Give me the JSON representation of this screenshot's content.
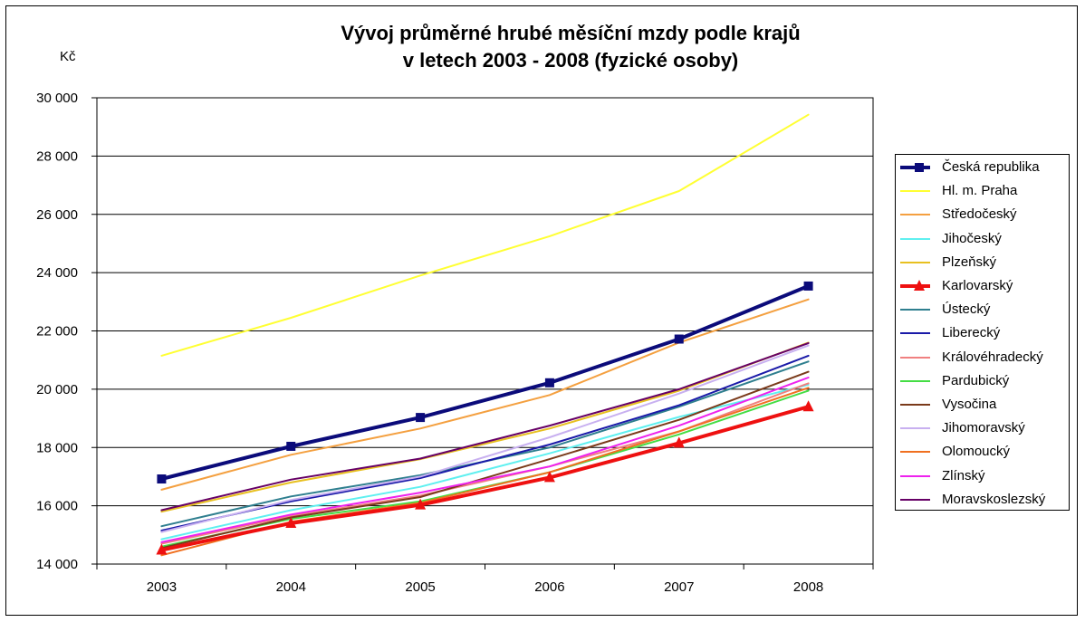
{
  "unit_label": "Kč",
  "title_line1": "Vývoj průměrné hrubé měsíční mzdy podle krajů",
  "title_line2": "v letech 2003 - 2008 (fyzické osoby)",
  "chart_data": {
    "type": "line",
    "title": "Vývoj průměrné hrubé měsíční mzdy podle krajů v letech 2003 - 2008 (fyzické osoby)",
    "xlabel": "",
    "ylabel": "Kč",
    "x": [
      "2003",
      "2004",
      "2005",
      "2006",
      "2007",
      "2008"
    ],
    "ylim": [
      14000,
      30000
    ],
    "yticks": [
      14000,
      16000,
      18000,
      20000,
      22000,
      24000,
      26000,
      28000,
      30000
    ],
    "ytick_labels": [
      "14 000",
      "16 000",
      "18 000",
      "20 000",
      "22 000",
      "24 000",
      "26 000",
      "28 000",
      "30 000"
    ],
    "grid": "horizontal",
    "legend_position": "right",
    "series": [
      {
        "name": "Česká republika",
        "color": "#0b0b7a",
        "width": 4,
        "marker": "square",
        "values": [
          16920,
          18040,
          19030,
          20220,
          21720,
          23540
        ]
      },
      {
        "name": "Hl. m. Praha",
        "color": "#ffff33",
        "width": 2,
        "marker": "none",
        "values": [
          21150,
          22450,
          23900,
          25250,
          26800,
          29420
        ]
      },
      {
        "name": "Středočeský",
        "color": "#f4a040",
        "width": 2,
        "marker": "none",
        "values": [
          16550,
          17750,
          18650,
          19800,
          21600,
          23080
        ]
      },
      {
        "name": "Jihočeský",
        "color": "#5ff0f0",
        "width": 2,
        "marker": "none",
        "values": [
          14850,
          15850,
          16650,
          17800,
          19050,
          20150
        ]
      },
      {
        "name": "Plzeňský",
        "color": "#e8c020",
        "width": 2,
        "marker": "none",
        "values": [
          15800,
          16800,
          17600,
          18650,
          19950,
          21600
        ]
      },
      {
        "name": "Karlovarský",
        "color": "#ee1010",
        "width": 4,
        "marker": "triangle",
        "values": [
          14480,
          15400,
          16030,
          16970,
          18150,
          19400
        ]
      },
      {
        "name": "Ústecký",
        "color": "#2f7f8f",
        "width": 2,
        "marker": "none",
        "values": [
          15300,
          16320,
          17050,
          18000,
          19400,
          20950
        ]
      },
      {
        "name": "Liberecký",
        "color": "#1a1aa8",
        "width": 2,
        "marker": "none",
        "values": [
          15150,
          16150,
          16950,
          18100,
          19450,
          21150
        ]
      },
      {
        "name": "Královéhradecký",
        "color": "#f08080",
        "width": 2,
        "marker": "none",
        "values": [
          14700,
          15650,
          16350,
          17350,
          18550,
          20200
        ]
      },
      {
        "name": "Pardubický",
        "color": "#44dd44",
        "width": 2,
        "marker": "none",
        "values": [
          14600,
          15550,
          16150,
          17150,
          18450,
          19950
        ]
      },
      {
        "name": "Vysočina",
        "color": "#7a3a1a",
        "width": 2,
        "marker": "none",
        "values": [
          14550,
          15600,
          16300,
          17600,
          18950,
          20600
        ]
      },
      {
        "name": "Jihomoravský",
        "color": "#c8b0f0",
        "width": 2,
        "marker": "none",
        "values": [
          15100,
          16200,
          17000,
          18350,
          19850,
          21500
        ]
      },
      {
        "name": "Olomoucký",
        "color": "#f07020",
        "width": 2,
        "marker": "none",
        "values": [
          14300,
          15450,
          16100,
          17150,
          18550,
          20050
        ]
      },
      {
        "name": "Zlínský",
        "color": "#ee22ee",
        "width": 2,
        "marker": "none",
        "values": [
          14750,
          15700,
          16450,
          17350,
          18750,
          20400
        ]
      },
      {
        "name": "Moravskoslezský",
        "color": "#660066",
        "width": 2,
        "marker": "none",
        "values": [
          15850,
          16900,
          17620,
          18750,
          20000,
          21580
        ]
      }
    ]
  }
}
